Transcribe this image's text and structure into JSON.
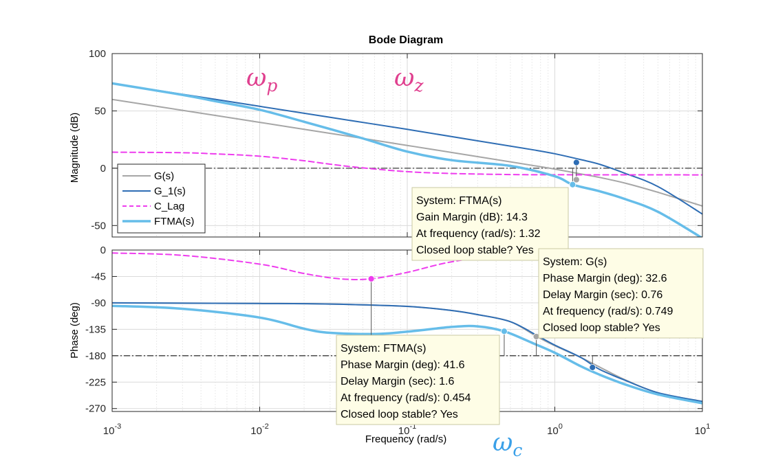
{
  "chart_data": {
    "type": "line",
    "title": "Bode Diagram",
    "xlabel": "Frequency  (rad/s)",
    "x_scale": "log",
    "xlim": [
      0.001,
      10
    ],
    "x_ticks": [
      {
        "value": 0.001,
        "base": "10",
        "exp": "-3"
      },
      {
        "value": 0.01,
        "base": "10",
        "exp": "-2"
      },
      {
        "value": 0.1,
        "base": "10",
        "exp": "-1"
      },
      {
        "value": 1,
        "base": "10",
        "exp": "0"
      },
      {
        "value": 10,
        "base": "10",
        "exp": "1"
      }
    ],
    "grid": true,
    "legend": {
      "position": "lower-left of magnitude plot",
      "entries": [
        {
          "name": "G(s)",
          "color": "#a6a6a6",
          "dash": "solid"
        },
        {
          "name": "G_1(s)",
          "color": "#2e6db4",
          "dash": "solid"
        },
        {
          "name": "C_Lag",
          "color": "#ee3cee",
          "dash": "dashed"
        },
        {
          "name": "FTMA(s)",
          "color": "#66bde9",
          "dash": "solid"
        }
      ]
    },
    "magnitude": {
      "ylabel": "Magnitude (dB)",
      "ylim": [
        -60,
        100
      ],
      "yticks": [
        -50,
        0,
        50,
        100
      ],
      "reference_line": 0,
      "series": [
        {
          "name": "G(s)",
          "x": [
            0.001,
            0.003,
            0.01,
            0.03,
            0.1,
            0.3,
            0.7,
            1,
            1.5,
            2,
            3,
            5,
            10
          ],
          "y": [
            60,
            50.5,
            40,
            30.4,
            19.9,
            10.1,
            2.5,
            -0.8,
            -5,
            -8,
            -13,
            -21,
            -33
          ]
        },
        {
          "name": "G_1(s)",
          "x": [
            0.001,
            0.003,
            0.01,
            0.03,
            0.1,
            0.3,
            0.7,
            1,
            1.5,
            2,
            3,
            5,
            10
          ],
          "y": [
            74,
            64.5,
            54,
            44.4,
            33.9,
            23.9,
            16.2,
            12.6,
            7.5,
            3.5,
            -4.5,
            -16,
            -40
          ]
        },
        {
          "name": "C_Lag",
          "x": [
            0.001,
            0.003,
            0.005,
            0.01,
            0.02,
            0.03,
            0.05,
            0.1,
            0.2,
            0.5,
            1,
            10
          ],
          "y": [
            14,
            13.5,
            12.5,
            10.5,
            6.5,
            3.5,
            0.3,
            -3,
            -4.6,
            -5.5,
            -5.7,
            -5.8
          ]
        },
        {
          "name": "FTMA(s)",
          "x": [
            0.001,
            0.003,
            0.005,
            0.01,
            0.02,
            0.03,
            0.05,
            0.1,
            0.2,
            0.5,
            1,
            1.32,
            2,
            3,
            5,
            10
          ],
          "y": [
            74,
            64,
            58.5,
            51,
            40.5,
            34.2,
            26,
            14.5,
            7,
            2,
            -7,
            -14.3,
            -20,
            -27,
            -38,
            -61
          ]
        }
      ],
      "markers": [
        {
          "series": "G_1(s)",
          "x": 1.4,
          "y": 5
        },
        {
          "series": "G(s)",
          "x": 1.4,
          "y": -10
        },
        {
          "series": "FTMA(s)",
          "x": 1.32,
          "y": -14.3
        }
      ]
    },
    "phase": {
      "ylabel": "Phase (deg)",
      "ylim": [
        -275,
        0
      ],
      "yticks": [
        -270,
        -225,
        -180,
        -135,
        -90,
        -45,
        0
      ],
      "reference_line": -180,
      "series": [
        {
          "name": "G(s)",
          "x": [
            0.001,
            0.01,
            0.03,
            0.1,
            0.2,
            0.3,
            0.5,
            0.75,
            1,
            1.5,
            2,
            3,
            5,
            10
          ],
          "y": [
            -90,
            -91,
            -92,
            -96,
            -103,
            -110,
            -122,
            -147,
            -163,
            -183,
            -199,
            -221,
            -243,
            -258
          ]
        },
        {
          "name": "G_1(s)",
          "x": [
            0.001,
            0.01,
            0.03,
            0.1,
            0.2,
            0.3,
            0.5,
            0.75,
            1,
            1.5,
            2,
            3,
            5,
            10
          ],
          "y": [
            -90,
            -91,
            -92,
            -96,
            -103,
            -110,
            -122,
            -145,
            -162,
            -183,
            -203,
            -222,
            -243,
            -258
          ]
        },
        {
          "name": "C_Lag",
          "x": [
            0.001,
            0.003,
            0.01,
            0.02,
            0.035,
            0.057,
            0.1,
            0.2,
            0.5,
            1
          ],
          "y": [
            -5,
            -9,
            -24,
            -40,
            -49,
            -49,
            -38,
            -20,
            -7,
            -3
          ]
        },
        {
          "name": "FTMA(s)",
          "x": [
            0.001,
            0.003,
            0.01,
            0.02,
            0.03,
            0.06,
            0.1,
            0.2,
            0.3,
            0.454,
            0.7,
            1,
            1.5,
            2,
            3,
            5,
            10
          ],
          "y": [
            -95,
            -100,
            -115,
            -134,
            -141,
            -143,
            -139,
            -131,
            -130,
            -138.4,
            -158,
            -175,
            -198,
            -212,
            -229,
            -246,
            -261
          ]
        }
      ],
      "markers": [
        {
          "series": "C_Lag",
          "x": 0.057,
          "y": -49
        },
        {
          "series": "FTMA(s)",
          "x": 0.454,
          "y": -138.4
        },
        {
          "series": "G(s)",
          "x": 0.749,
          "y": -147.4
        },
        {
          "series": "G_1(s)",
          "x": 1.8,
          "y": -200
        }
      ]
    },
    "datatips": [
      {
        "lines": [
          "System: FTMA(s)",
          "Gain Margin (dB): 14.3",
          "At frequency (rad/s): 1.32",
          "Closed loop stable? Yes"
        ]
      },
      {
        "lines": [
          "System: G(s)",
          "Phase Margin (deg): 32.6",
          "Delay Margin (sec): 0.76",
          "At frequency (rad/s): 0.749",
          "Closed loop stable? Yes"
        ]
      },
      {
        "lines": [
          "System: FTMA(s)",
          "Phase Margin (deg): 41.6",
          "Delay Margin (sec): 1.6",
          "At frequency (rad/s): 0.454",
          "Closed loop stable? Yes"
        ]
      }
    ],
    "annotations": [
      {
        "base": "ω",
        "sub": "p",
        "color": "#e0408f"
      },
      {
        "base": "ω",
        "sub": "z",
        "color": "#e0408f"
      },
      {
        "base": "ω",
        "sub": "c",
        "color": "#3aa0e8"
      }
    ]
  }
}
